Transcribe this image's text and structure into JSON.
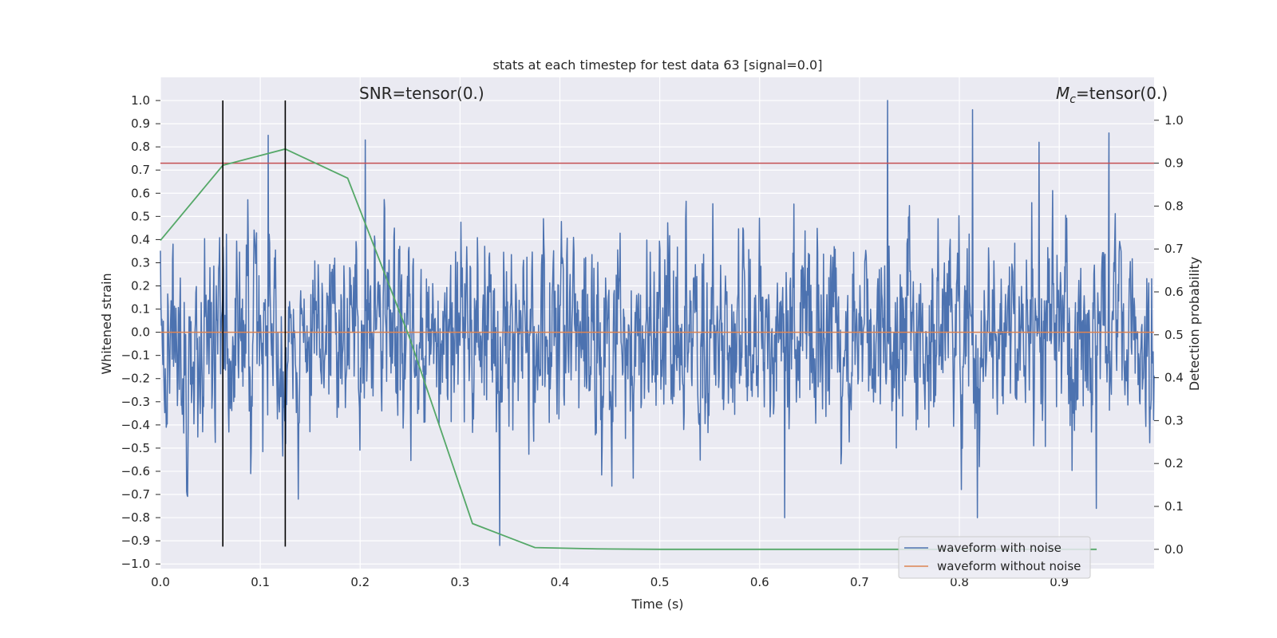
{
  "chart_data": {
    "type": "line",
    "title": "stats at each timestep for test data 63 [signal=0.0]",
    "xlabel": "Time (s)",
    "ylabel": "Whitened strain",
    "y2label": "Detection probability",
    "xlim": [
      0.0,
      0.995
    ],
    "ylim": [
      -1.02,
      1.1
    ],
    "y2lim": [
      -0.045,
      1.1
    ],
    "grid": true,
    "xticks": [
      0.0,
      0.1,
      0.2,
      0.3,
      0.4,
      0.5,
      0.6,
      0.7,
      0.8,
      0.9
    ],
    "xtick_labels": [
      "0.0",
      "0.1",
      "0.2",
      "0.3",
      "0.4",
      "0.5",
      "0.6",
      "0.7",
      "0.8",
      "0.9"
    ],
    "yticks": [
      1.0,
      0.9,
      0.8,
      0.7,
      0.6,
      0.5,
      0.4,
      0.3,
      0.2,
      0.1,
      0.0,
      -0.1,
      -0.2,
      -0.3,
      -0.4,
      -0.5,
      -0.6,
      -0.7,
      -0.8,
      -0.9,
      -1.0
    ],
    "ytick_labels": [
      "1.0",
      "0.9",
      "0.8",
      "0.7",
      "0.6",
      "0.5",
      "0.4",
      "0.3",
      "0.2",
      "0.1",
      "0.0",
      "−0.1",
      "−0.2",
      "−0.3",
      "−0.4",
      "−0.5",
      "−0.6",
      "−0.7",
      "−0.8",
      "−0.9",
      "−1.0"
    ],
    "y2ticks": [
      1.0,
      0.9,
      0.8,
      0.7,
      0.6,
      0.5,
      0.4,
      0.3,
      0.2,
      0.1,
      0.0
    ],
    "y2tick_labels": [
      "1.0",
      "0.9",
      "0.8",
      "0.7",
      "0.6",
      "0.5",
      "0.4",
      "0.3",
      "0.2",
      "0.1",
      "0.0"
    ],
    "annotations": {
      "snr": "SNR=tensor(0.)",
      "mc_symbol": "M",
      "mc_subscript": "c",
      "mc_value": "=tensor(0.)"
    },
    "colors": {
      "background": "#eaeaf2",
      "grid": "#ffffff",
      "noisy": "#4c72b0",
      "clean": "#dd8452",
      "probability": "#55a868",
      "threshold": "#c44e52",
      "vlines": "#000000"
    },
    "series": [
      {
        "name": "waveform with noise",
        "axis": "left",
        "type": "noise",
        "samples": 2048,
        "amplitude_range": [
          -0.92,
          1.0
        ],
        "peaks": [
          [
            0.108,
            0.85
          ],
          [
            0.205,
            0.83
          ],
          [
            0.728,
            1.0
          ],
          [
            0.813,
            0.96
          ],
          [
            0.88,
            0.82
          ],
          [
            0.95,
            0.86
          ]
        ],
        "troughs": [
          [
            0.34,
            -0.92
          ],
          [
            0.818,
            -0.8
          ],
          [
            0.625,
            -0.8
          ],
          [
            0.937,
            -0.76
          ]
        ]
      },
      {
        "name": "waveform without noise",
        "axis": "left",
        "x": [
          0.0,
          0.995
        ],
        "y": [
          0.0,
          0.0
        ]
      },
      {
        "name": "",
        "axis": "right",
        "x": [
          0.0,
          0.0625,
          0.125,
          0.1875,
          0.25,
          0.3125,
          0.375,
          0.4375,
          0.5,
          0.5625,
          0.625,
          0.6875,
          0.75,
          0.8125,
          0.875,
          0.9375
        ],
        "y": [
          0.72,
          0.895,
          0.933,
          0.865,
          0.49,
          0.06,
          0.004,
          0.001,
          0.0,
          0.0,
          0.0,
          0.0,
          0.0,
          0.0,
          0.0,
          0.0
        ]
      }
    ],
    "threshold": {
      "axis": "right",
      "value": 0.9
    },
    "vertical_lines": [
      {
        "x": 0.0625,
        "ymin": -0.925,
        "ymax": 1.0
      },
      {
        "x": 0.125,
        "ymin": -0.925,
        "ymax": 1.0
      }
    ],
    "legend": {
      "placement": "lower-right",
      "entries": [
        "waveform with noise",
        "waveform without noise"
      ]
    }
  }
}
